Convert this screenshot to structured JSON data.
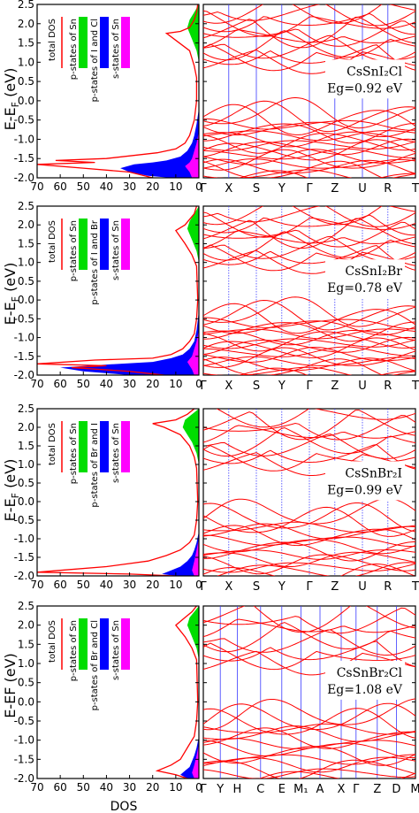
{
  "chart_data": [
    {
      "type": "area",
      "panel": "dos",
      "ylabel": "E-E_F (eV)",
      "xlabel": "",
      "xlim": [
        70,
        0
      ],
      "ylim": [
        -2.0,
        2.5
      ],
      "xticks": [
        70,
        60,
        50,
        40,
        30,
        20,
        10,
        0
      ],
      "yticks": [
        -2.0,
        -1.5,
        -1.0,
        -0.5,
        0.0,
        0.5,
        1.0,
        1.5,
        2.0,
        2.5
      ],
      "legend": [
        "total DOS",
        "p-states of Sn",
        "p-states of I and Cl",
        "s-states of Sn"
      ],
      "series": [
        {
          "name": "total DOS",
          "color": "#ff0000",
          "x": [
            0.5,
            1,
            2,
            4,
            8,
            14,
            4,
            2,
            1,
            1,
            2,
            4,
            6,
            10,
            18,
            40,
            62,
            45,
            70,
            50,
            30,
            20
          ],
          "y": [
            2.5,
            2.3,
            2.1,
            1.9,
            1.8,
            1.75,
            1.3,
            0.9,
            0.6,
            0.0,
            -0.5,
            -0.9,
            -1.1,
            -1.25,
            -1.35,
            -1.5,
            -1.55,
            -1.6,
            -1.65,
            -1.75,
            -1.85,
            -2.0
          ]
        },
        {
          "name": "p-states of Sn",
          "color": "#00dd00",
          "x": [
            0,
            2,
            4,
            5,
            3,
            1,
            0
          ],
          "y": [
            2.5,
            2.3,
            2.1,
            1.9,
            1.6,
            1.3,
            1.0
          ]
        },
        {
          "name": "p-states of I and Cl",
          "color": "#0000ff",
          "x": [
            0,
            1,
            2,
            3,
            5,
            8,
            14,
            20,
            28,
            34,
            30,
            22,
            12
          ],
          "y": [
            -0.2,
            -0.6,
            -0.9,
            -1.1,
            -1.3,
            -1.45,
            -1.55,
            -1.6,
            -1.65,
            -1.75,
            -1.85,
            -1.95,
            -2.0
          ]
        },
        {
          "name": "s-states of Sn",
          "color": "#ff00ff",
          "x": [
            0,
            1,
            2,
            3,
            4,
            6,
            4,
            3
          ],
          "y": [
            -0.8,
            -1.1,
            -1.3,
            -1.5,
            -1.6,
            -1.7,
            -1.85,
            -2.0
          ]
        }
      ]
    },
    {
      "type": "line",
      "panel": "bands",
      "title": "CsSnI₂Cl",
      "annotation": "Eg=0.92 eV",
      "kpoints": [
        "Γ",
        "X",
        "S",
        "Y",
        "Γ",
        "Z",
        "U",
        "R",
        "T"
      ],
      "ylim": [
        -2.0,
        2.5
      ],
      "series_color": "#ff0000",
      "band_count": 32
    },
    {
      "type": "area",
      "panel": "dos",
      "ylabel": "E-E_F (eV)",
      "xlim": [
        70,
        0
      ],
      "ylim": [
        -2.0,
        2.5
      ],
      "xticks": [
        70,
        60,
        50,
        40,
        30,
        20,
        10,
        0
      ],
      "yticks": [
        -2.0,
        -1.5,
        -1.0,
        -0.5,
        0.0,
        0.5,
        1.0,
        1.5,
        2.0,
        2.5
      ],
      "legend": [
        "total DOS",
        "p-states of Sn",
        "p-states of I and Br",
        "s-states of Sn"
      ],
      "series": [
        {
          "name": "total DOS",
          "color": "#ff0000",
          "x": [
            1,
            2,
            4,
            6,
            10,
            6,
            3,
            1,
            0.5,
            1,
            2,
            4,
            7,
            12,
            20,
            45,
            70,
            40,
            55,
            30,
            15
          ],
          "y": [
            2.5,
            2.3,
            2.15,
            2.0,
            1.85,
            1.5,
            1.2,
            0.9,
            0.0,
            -0.5,
            -0.9,
            -1.1,
            -1.3,
            -1.45,
            -1.55,
            -1.6,
            -1.7,
            -1.75,
            -1.8,
            -1.9,
            -2.0
          ]
        },
        {
          "name": "p-states of Sn",
          "color": "#00dd00",
          "x": [
            0,
            2,
            4,
            5,
            3,
            1,
            0
          ],
          "y": [
            2.5,
            2.3,
            2.1,
            1.9,
            1.6,
            1.3,
            1.0
          ]
        },
        {
          "name": "p-states of I and Br",
          "color": "#0000ff",
          "x": [
            0,
            1,
            2,
            4,
            7,
            12,
            20,
            40,
            60,
            50,
            30
          ],
          "y": [
            -0.3,
            -0.8,
            -1.1,
            -1.3,
            -1.45,
            -1.55,
            -1.65,
            -1.72,
            -1.8,
            -1.9,
            -2.0
          ]
        },
        {
          "name": "s-states of Sn",
          "color": "#ff00ff",
          "x": [
            0,
            1,
            2,
            3,
            5,
            3,
            2
          ],
          "y": [
            -0.8,
            -1.1,
            -1.3,
            -1.5,
            -1.65,
            -1.85,
            -2.0
          ]
        }
      ]
    },
    {
      "type": "line",
      "panel": "bands",
      "title": "CsSnI₂Br",
      "annotation": "Eg=0.78 eV",
      "kpoints": [
        "Γ",
        "X",
        "S",
        "Y",
        "Γ",
        "Z",
        "U",
        "R",
        "T"
      ],
      "ylim": [
        -2.0,
        2.5
      ],
      "series_color": "#ff0000",
      "band_count": 32
    },
    {
      "type": "area",
      "panel": "dos",
      "ylabel": "E-E_F (eV)",
      "xlim": [
        70,
        0
      ],
      "ylim": [
        -2.0,
        2.5
      ],
      "xticks": [
        70,
        60,
        50,
        40,
        30,
        20,
        10,
        0
      ],
      "yticks": [
        -2.0,
        -1.5,
        -1.0,
        -0.5,
        0.0,
        0.5,
        1.0,
        1.5,
        2.0,
        2.5
      ],
      "legend": [
        "total DOS",
        "p-states of Sn",
        "p-states of Br and I",
        "s-states of Sn"
      ],
      "series": [
        {
          "name": "total DOS",
          "color": "#ff0000",
          "x": [
            2,
            5,
            10,
            20,
            15,
            8,
            4,
            2,
            1,
            0.5,
            1,
            2,
            4,
            8,
            14,
            22,
            40,
            60,
            70,
            30,
            10
          ],
          "y": [
            2.5,
            2.35,
            2.2,
            2.1,
            2.0,
            1.8,
            1.5,
            1.2,
            0.9,
            0.0,
            -0.5,
            -0.9,
            -1.1,
            -1.3,
            -1.45,
            -1.6,
            -1.75,
            -1.85,
            -1.9,
            -1.95,
            -2.0
          ]
        },
        {
          "name": "p-states of Sn",
          "color": "#00dd00",
          "x": [
            0,
            3,
            6,
            7,
            5,
            3,
            1,
            0
          ],
          "y": [
            2.5,
            2.35,
            2.2,
            2.0,
            1.8,
            1.6,
            1.3,
            1.0
          ]
        },
        {
          "name": "p-states of Br and I",
          "color": "#0000ff",
          "x": [
            0,
            1,
            2,
            3,
            5,
            8,
            12,
            16,
            10
          ],
          "y": [
            -0.8,
            -1.1,
            -1.3,
            -1.45,
            -1.6,
            -1.75,
            -1.85,
            -1.95,
            -2.0
          ]
        },
        {
          "name": "s-states of Sn",
          "color": "#ff00ff",
          "x": [
            0,
            1,
            2,
            3,
            2
          ],
          "y": [
            -1.0,
            -1.3,
            -1.6,
            -1.85,
            -2.0
          ]
        }
      ]
    },
    {
      "type": "line",
      "panel": "bands",
      "title": "CsSnBr₂I",
      "annotation": "Eg=0.99 eV",
      "kpoints": [
        "Γ",
        "X",
        "S",
        "Y",
        "Γ",
        "Z",
        "U",
        "R",
        "T"
      ],
      "ylim": [
        -2.0,
        2.5
      ],
      "series_color": "#ff0000",
      "band_count": 24
    },
    {
      "type": "area",
      "panel": "dos",
      "ylabel": "E-EF (eV)",
      "xlabel": "DOS",
      "xlim": [
        70,
        0
      ],
      "ylim": [
        -2.0,
        2.5
      ],
      "xticks": [
        70,
        60,
        50,
        40,
        30,
        20,
        10,
        0
      ],
      "yticks": [
        -2.0,
        -1.5,
        -1.0,
        -0.5,
        0.0,
        0.5,
        1.0,
        1.5,
        2.0,
        2.5
      ],
      "legend": [
        "total DOS",
        "p-states of Sn",
        "p-states of Br and Cl",
        "s-states of Sn"
      ],
      "series": [
        {
          "name": "total DOS",
          "color": "#ff0000",
          "x": [
            1,
            3,
            6,
            10,
            6,
            3,
            1,
            0.5,
            1,
            2,
            4,
            6,
            8,
            12,
            18,
            10,
            5
          ],
          "y": [
            2.5,
            2.35,
            2.2,
            2.0,
            1.7,
            1.4,
            1.1,
            0.0,
            -0.5,
            -0.9,
            -1.1,
            -1.3,
            -1.5,
            -1.65,
            -1.8,
            -1.9,
            -2.0
          ]
        },
        {
          "name": "p-states of Sn",
          "color": "#00dd00",
          "x": [
            0,
            2,
            4,
            5,
            3,
            1,
            0
          ],
          "y": [
            2.5,
            2.35,
            2.2,
            2.0,
            1.7,
            1.4,
            1.1
          ]
        },
        {
          "name": "p-states of Br and Cl",
          "color": "#0000ff",
          "x": [
            0,
            1,
            2,
            3,
            4,
            6,
            8,
            5
          ],
          "y": [
            -0.9,
            -1.2,
            -1.4,
            -1.55,
            -1.7,
            -1.8,
            -1.9,
            -2.0
          ]
        },
        {
          "name": "s-states of Sn",
          "color": "#ff00ff",
          "x": [
            0,
            1,
            2,
            3,
            2
          ],
          "y": [
            -1.1,
            -1.4,
            -1.65,
            -1.85,
            -2.0
          ]
        }
      ]
    },
    {
      "type": "line",
      "panel": "bands",
      "title": "CsSnBr₂Cl",
      "annotation": "Eg=1.08 eV",
      "kpoints": [
        "Γ",
        "Y",
        "H",
        "C",
        "E",
        "M₁",
        "A",
        "X",
        "Γ",
        "Z",
        "D",
        "M"
      ],
      "ylim": [
        -2.0,
        2.5
      ],
      "series_color": "#ff0000",
      "band_count": 22
    }
  ]
}
